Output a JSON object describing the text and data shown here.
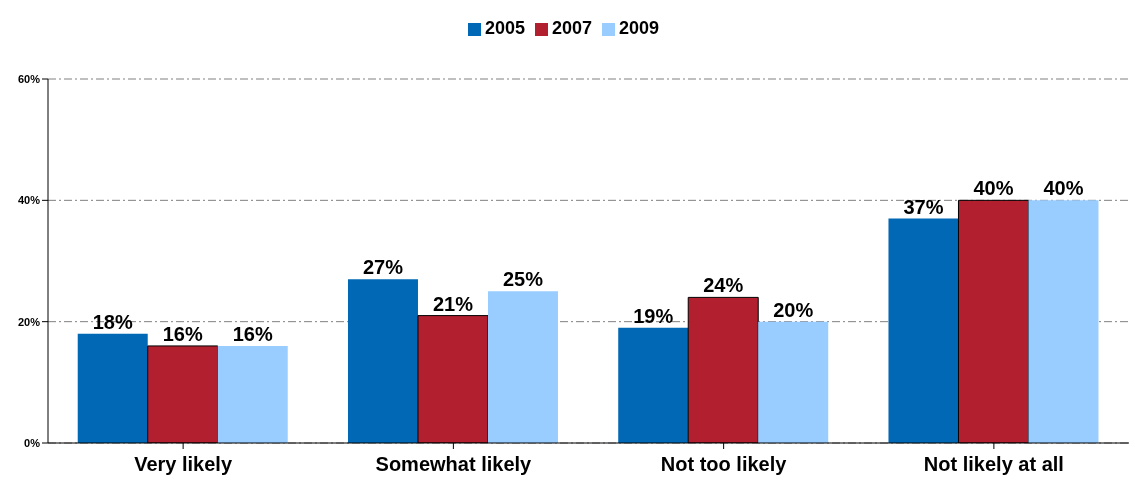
{
  "chart_data": {
    "type": "bar",
    "categories": [
      "Very likely",
      "Somewhat likely",
      "Not too likely",
      "Not likely at all"
    ],
    "series": [
      {
        "name": "2005",
        "color": "#0068b4",
        "values": [
          18,
          27,
          19,
          37
        ],
        "value_labels": [
          "18%",
          "27%",
          "19%",
          "37%"
        ]
      },
      {
        "name": "2007",
        "color": "#b22030",
        "values": [
          16,
          21,
          24,
          40
        ],
        "value_labels": [
          "16%",
          "21%",
          "24%",
          "40%"
        ]
      },
      {
        "name": "2009",
        "color": "#99ccff",
        "values": [
          16,
          25,
          20,
          40
        ],
        "value_labels": [
          "16%",
          "25%",
          "20%",
          "40%"
        ]
      }
    ],
    "ylim": [
      0,
      60
    ],
    "yticks": [
      {
        "value": 0,
        "label": "0%"
      },
      {
        "value": 20,
        "label": "20%"
      },
      {
        "value": 40,
        "label": "40%"
      },
      {
        "value": 60,
        "label": "60%"
      }
    ],
    "grid": "y",
    "legend": "top"
  }
}
